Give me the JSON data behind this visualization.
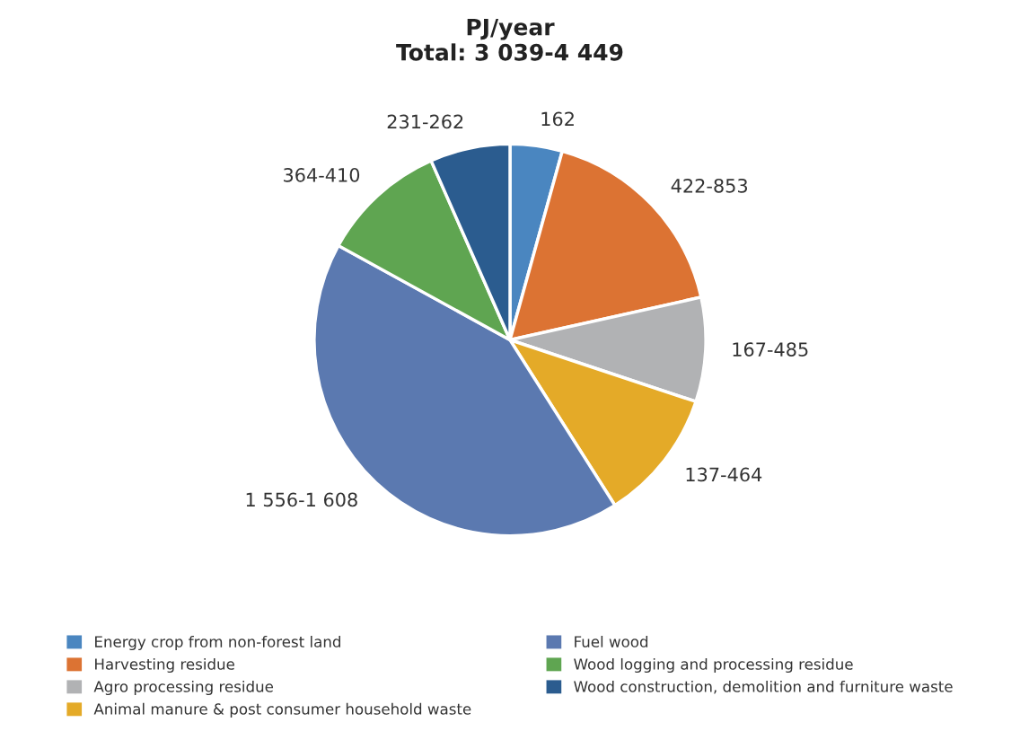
{
  "chart_data": {
    "type": "pie",
    "title": "PJ/year\nTotal: 3 039-4 449",
    "categories": [
      "Energy crop from non-forest land",
      "Harvesting residue",
      "Agro processing residue",
      "Animal manure & post consumer household waste",
      "Fuel wood",
      "Wood logging and processing residue",
      "Wood construction, demolition and furniture waste"
    ],
    "values": [
      4.3,
      17.2,
      8.6,
      10.9,
      42.0,
      10.4,
      6.6
    ],
    "annotations": [
      "162",
      "422-853",
      "167-485",
      "137-464",
      "1 556-1 608",
      "364-410",
      "231-262"
    ],
    "colors": [
      "#4a86c0",
      "#dc7333",
      "#b1b2b4",
      "#e4aa28",
      "#5b79b0",
      "#5fa551",
      "#2b5c8f"
    ],
    "legend": "bottom"
  }
}
